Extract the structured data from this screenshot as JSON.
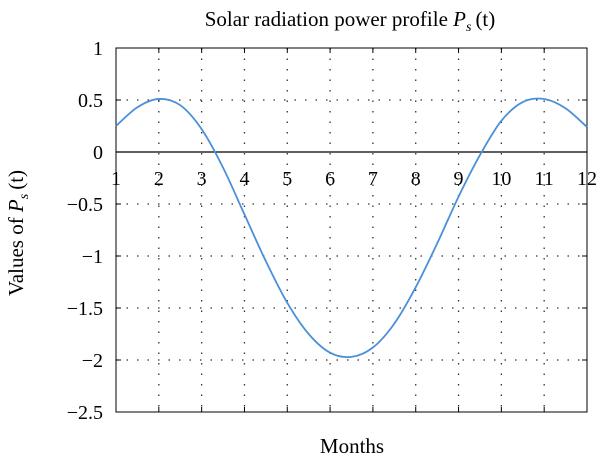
{
  "chart_data": {
    "type": "line",
    "title": "Solar radiation power profile",
    "title_symbol": "P",
    "title_subscript": "s",
    "title_arg": "(t)",
    "xlabel": "Months",
    "ylabel": "Values of",
    "ylabel_symbol": "P",
    "ylabel_subscript": "s",
    "ylabel_arg": "(t)",
    "xlim": [
      1,
      12
    ],
    "ylim": [
      -2.5,
      1
    ],
    "grid": true,
    "x_ticks": [
      1,
      2,
      3,
      4,
      5,
      6,
      7,
      8,
      9,
      10,
      11,
      12
    ],
    "x_tick_labels": [
      "1",
      "2",
      "3",
      "4",
      "5",
      "6",
      "7",
      "8",
      "9",
      "10",
      "11",
      "12"
    ],
    "y_ticks": [
      1,
      0.5,
      0,
      -0.5,
      -1,
      -1.5,
      -2,
      -2.5
    ],
    "y_tick_labels": [
      "1",
      "0.5",
      "0",
      "−0.5",
      "−1",
      "−1.5",
      "−2",
      "−2.5"
    ],
    "series": [
      {
        "color": "#4a90d9",
        "x": [
          1,
          1.5,
          2,
          2.5,
          3,
          3.5,
          4,
          4.5,
          5,
          5.5,
          6,
          6.5,
          7,
          7.5,
          8,
          8.5,
          9,
          9.5,
          10,
          10.5,
          11,
          11.5,
          12
        ],
        "y": [
          0.25,
          0.43,
          0.51,
          0.45,
          0.22,
          -0.15,
          -0.6,
          -1.05,
          -1.45,
          -1.75,
          -1.93,
          -1.97,
          -1.88,
          -1.65,
          -1.3,
          -0.88,
          -0.43,
          -0.03,
          0.3,
          0.48,
          0.51,
          0.42,
          0.24
        ]
      }
    ]
  }
}
